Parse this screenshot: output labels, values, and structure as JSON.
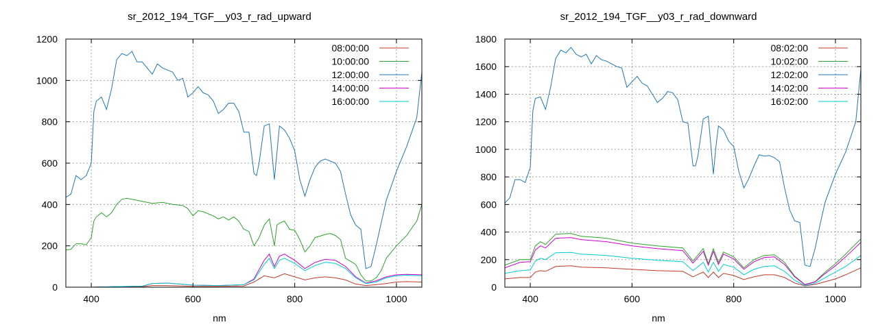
{
  "chart_data": [
    {
      "type": "line",
      "title": "sr_2012_194_TGF__y03_r_rad_upward",
      "xlabel": "nm",
      "ylabel": "",
      "xlim": [
        350,
        1050
      ],
      "ylim": [
        0,
        1200
      ],
      "xticks": [
        400,
        600,
        800,
        1000
      ],
      "yticks": [
        0,
        200,
        400,
        600,
        800,
        1000,
        1200
      ],
      "grid": true,
      "legend_position": "top-right",
      "series": [
        {
          "name": "08:00:00",
          "color": "#c0392b",
          "x": [
            350,
            400,
            450,
            500,
            520,
            550,
            600,
            650,
            700,
            720,
            740,
            760,
            780,
            800,
            820,
            840,
            860,
            880,
            900,
            920,
            940,
            960,
            980,
            1000,
            1020,
            1050
          ],
          "y": [
            0,
            0,
            2,
            3,
            8,
            8,
            4,
            4,
            6,
            25,
            55,
            45,
            65,
            50,
            35,
            45,
            50,
            45,
            35,
            15,
            8,
            12,
            18,
            25,
            27,
            25
          ]
        },
        {
          "name": "10:00:00",
          "color": "#2ca02c",
          "x": [
            350,
            360,
            370,
            380,
            390,
            400,
            405,
            410,
            420,
            430,
            440,
            450,
            460,
            470,
            480,
            490,
            500,
            520,
            540,
            560,
            580,
            590,
            600,
            610,
            620,
            640,
            650,
            660,
            670,
            680,
            690,
            700,
            710,
            720,
            730,
            740,
            750,
            760,
            765,
            770,
            780,
            790,
            800,
            810,
            820,
            830,
            840,
            860,
            870,
            880,
            890,
            900,
            910,
            920,
            930,
            940,
            950,
            960,
            970,
            980,
            1000,
            1020,
            1040,
            1050
          ],
          "y": [
            180,
            183,
            210,
            210,
            205,
            240,
            320,
            340,
            360,
            340,
            360,
            400,
            425,
            430,
            425,
            420,
            415,
            405,
            410,
            400,
            395,
            380,
            345,
            370,
            365,
            345,
            330,
            340,
            325,
            340,
            320,
            280,
            270,
            200,
            240,
            300,
            330,
            200,
            300,
            310,
            320,
            280,
            275,
            230,
            170,
            200,
            240,
            255,
            260,
            250,
            230,
            140,
            125,
            110,
            60,
            30,
            30,
            45,
            80,
            140,
            200,
            250,
            320,
            400
          ]
        },
        {
          "name": "12:00:00",
          "color": "#1f77b4",
          "x": [
            350,
            360,
            370,
            380,
            390,
            400,
            405,
            410,
            420,
            430,
            440,
            450,
            460,
            470,
            480,
            490,
            500,
            510,
            520,
            530,
            540,
            550,
            560,
            570,
            580,
            590,
            600,
            610,
            620,
            630,
            640,
            650,
            660,
            670,
            680,
            690,
            700,
            710,
            720,
            725,
            730,
            740,
            750,
            760,
            765,
            770,
            780,
            790,
            800,
            810,
            820,
            830,
            840,
            850,
            860,
            870,
            880,
            890,
            900,
            910,
            920,
            930,
            940,
            950,
            960,
            970,
            980,
            1000,
            1020,
            1040,
            1050
          ],
          "y": [
            435,
            450,
            540,
            520,
            540,
            600,
            850,
            900,
            920,
            860,
            960,
            1100,
            1130,
            1120,
            1140,
            1090,
            1090,
            1060,
            1030,
            1080,
            1060,
            1050,
            1040,
            1000,
            1010,
            920,
            940,
            970,
            940,
            930,
            900,
            840,
            860,
            890,
            890,
            850,
            750,
            750,
            550,
            540,
            600,
            780,
            790,
            520,
            650,
            780,
            760,
            720,
            660,
            520,
            440,
            520,
            580,
            610,
            620,
            610,
            600,
            560,
            450,
            350,
            300,
            280,
            90,
            100,
            200,
            310,
            420,
            560,
            680,
            820,
            1040
          ]
        },
        {
          "name": "14:00:00",
          "color": "#cc00cc",
          "x": [
            350,
            400,
            450,
            500,
            520,
            550,
            600,
            650,
            700,
            720,
            740,
            750,
            760,
            770,
            780,
            800,
            820,
            840,
            860,
            880,
            900,
            920,
            940,
            960,
            980,
            1000,
            1020,
            1050
          ],
          "y": [
            0,
            0,
            3,
            5,
            18,
            20,
            10,
            8,
            12,
            40,
            130,
            160,
            100,
            150,
            160,
            130,
            90,
            120,
            135,
            130,
            100,
            50,
            20,
            30,
            50,
            60,
            62,
            60
          ]
        },
        {
          "name": "16:00:00",
          "color": "#00cccc",
          "x": [
            350,
            400,
            450,
            500,
            520,
            550,
            600,
            650,
            700,
            720,
            740,
            750,
            760,
            770,
            780,
            800,
            820,
            840,
            860,
            880,
            900,
            920,
            940,
            960,
            980,
            1000,
            1020,
            1050
          ],
          "y": [
            0,
            0,
            3,
            5,
            18,
            20,
            10,
            8,
            12,
            35,
            110,
            140,
            90,
            130,
            140,
            115,
            80,
            105,
            120,
            115,
            90,
            45,
            18,
            25,
            45,
            55,
            58,
            55
          ]
        }
      ]
    },
    {
      "type": "line",
      "title": "sr_2012_194_TGF__y03_r_rad_downward",
      "xlabel": "nm",
      "ylabel": "",
      "xlim": [
        350,
        1050
      ],
      "ylim": [
        0,
        1800
      ],
      "xticks": [
        400,
        600,
        800,
        1000
      ],
      "yticks": [
        0,
        200,
        400,
        600,
        800,
        1000,
        1200,
        1400,
        1600,
        1800
      ],
      "grid": true,
      "legend_position": "top-right",
      "series": [
        {
          "name": "08:02:00",
          "color": "#c0392b",
          "x": [
            350,
            380,
            400,
            410,
            420,
            430,
            450,
            480,
            500,
            550,
            600,
            650,
            700,
            720,
            740,
            750,
            760,
            770,
            780,
            800,
            820,
            840,
            860,
            880,
            900,
            920,
            940,
            960,
            980,
            1000,
            1020,
            1050
          ],
          "y": [
            60,
            70,
            70,
            110,
            120,
            115,
            150,
            155,
            145,
            140,
            130,
            120,
            115,
            75,
            110,
            70,
            110,
            70,
            100,
            85,
            55,
            75,
            90,
            90,
            70,
            30,
            10,
            20,
            40,
            60,
            90,
            140
          ]
        },
        {
          "name": "10:02:00",
          "color": "#2ca02c",
          "x": [
            350,
            380,
            400,
            410,
            420,
            430,
            450,
            480,
            500,
            550,
            600,
            650,
            700,
            720,
            740,
            750,
            760,
            770,
            780,
            800,
            820,
            840,
            860,
            880,
            900,
            920,
            940,
            960,
            980,
            1000,
            1020,
            1050
          ],
          "y": [
            160,
            200,
            200,
            300,
            330,
            310,
            385,
            390,
            370,
            355,
            320,
            300,
            285,
            190,
            280,
            170,
            280,
            180,
            255,
            220,
            140,
            200,
            230,
            235,
            180,
            80,
            20,
            40,
            110,
            170,
            240,
            350
          ]
        },
        {
          "name": "12:02:00",
          "color": "#1f77b4",
          "x": [
            350,
            360,
            370,
            380,
            390,
            400,
            405,
            410,
            420,
            430,
            440,
            450,
            460,
            470,
            480,
            490,
            500,
            510,
            520,
            530,
            540,
            550,
            560,
            570,
            580,
            590,
            600,
            610,
            620,
            630,
            640,
            650,
            660,
            670,
            680,
            690,
            700,
            710,
            720,
            725,
            730,
            740,
            750,
            760,
            765,
            770,
            780,
            790,
            800,
            810,
            820,
            830,
            840,
            850,
            860,
            870,
            880,
            890,
            900,
            910,
            920,
            930,
            940,
            950,
            960,
            970,
            980,
            1000,
            1020,
            1040,
            1050
          ],
          "y": [
            610,
            650,
            780,
            780,
            760,
            870,
            1280,
            1370,
            1380,
            1290,
            1450,
            1660,
            1720,
            1700,
            1740,
            1690,
            1670,
            1690,
            1620,
            1680,
            1650,
            1640,
            1620,
            1600,
            1590,
            1450,
            1490,
            1530,
            1480,
            1460,
            1400,
            1340,
            1370,
            1420,
            1410,
            1360,
            1200,
            1190,
            880,
            880,
            960,
            1220,
            1240,
            820,
            1020,
            1170,
            1140,
            1060,
            1020,
            840,
            720,
            790,
            880,
            960,
            950,
            955,
            940,
            910,
            720,
            560,
            480,
            470,
            160,
            150,
            280,
            460,
            620,
            820,
            980,
            1200,
            1580
          ]
        },
        {
          "name": "14:02:00",
          "color": "#cc00cc",
          "x": [
            350,
            380,
            400,
            410,
            420,
            430,
            450,
            480,
            500,
            550,
            600,
            650,
            700,
            720,
            740,
            750,
            760,
            770,
            780,
            800,
            820,
            840,
            860,
            880,
            900,
            920,
            940,
            960,
            980,
            1000,
            1020,
            1050
          ],
          "y": [
            140,
            180,
            185,
            270,
            300,
            285,
            355,
            360,
            345,
            330,
            300,
            280,
            265,
            175,
            260,
            160,
            260,
            165,
            240,
            205,
            130,
            185,
            215,
            220,
            165,
            75,
            18,
            38,
            100,
            155,
            220,
            325
          ]
        },
        {
          "name": "16:02:00",
          "color": "#00cccc",
          "x": [
            350,
            380,
            400,
            410,
            420,
            430,
            450,
            480,
            500,
            550,
            600,
            650,
            700,
            720,
            740,
            750,
            760,
            770,
            780,
            800,
            820,
            840,
            860,
            880,
            900,
            920,
            940,
            960,
            980,
            1000,
            1020,
            1050
          ],
          "y": [
            100,
            120,
            125,
            190,
            210,
            200,
            250,
            252,
            240,
            230,
            210,
            195,
            185,
            120,
            180,
            110,
            180,
            115,
            165,
            145,
            90,
            130,
            150,
            155,
            115,
            50,
            12,
            28,
            70,
            110,
            150,
            230
          ]
        }
      ]
    }
  ]
}
